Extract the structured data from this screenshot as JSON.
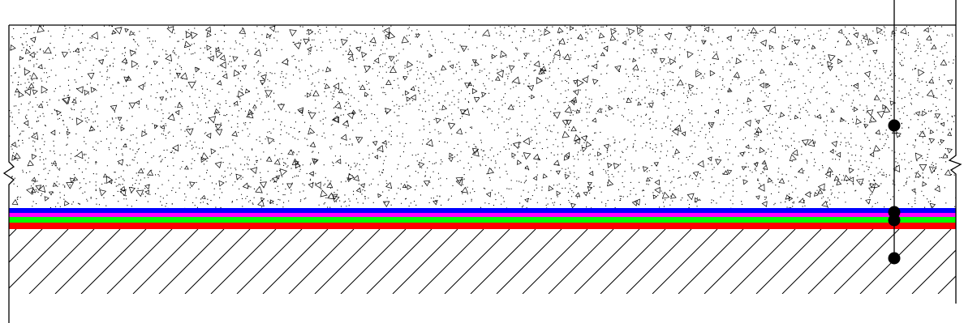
{
  "drawing": {
    "layers": [
      {
        "name": "concrete",
        "pattern": "stipple-aggregate",
        "color": "#000000"
      },
      {
        "name": "membrane-blue",
        "color": "#0000ff"
      },
      {
        "name": "membrane-magenta",
        "color": "#ff00ff"
      },
      {
        "name": "membrane-green",
        "color": "#00ff00"
      },
      {
        "name": "membrane-red",
        "color": "#ff0000"
      },
      {
        "name": "earth",
        "pattern": "diagonal-hatch",
        "color": "#000000"
      }
    ],
    "leader": {
      "points": 4
    }
  }
}
